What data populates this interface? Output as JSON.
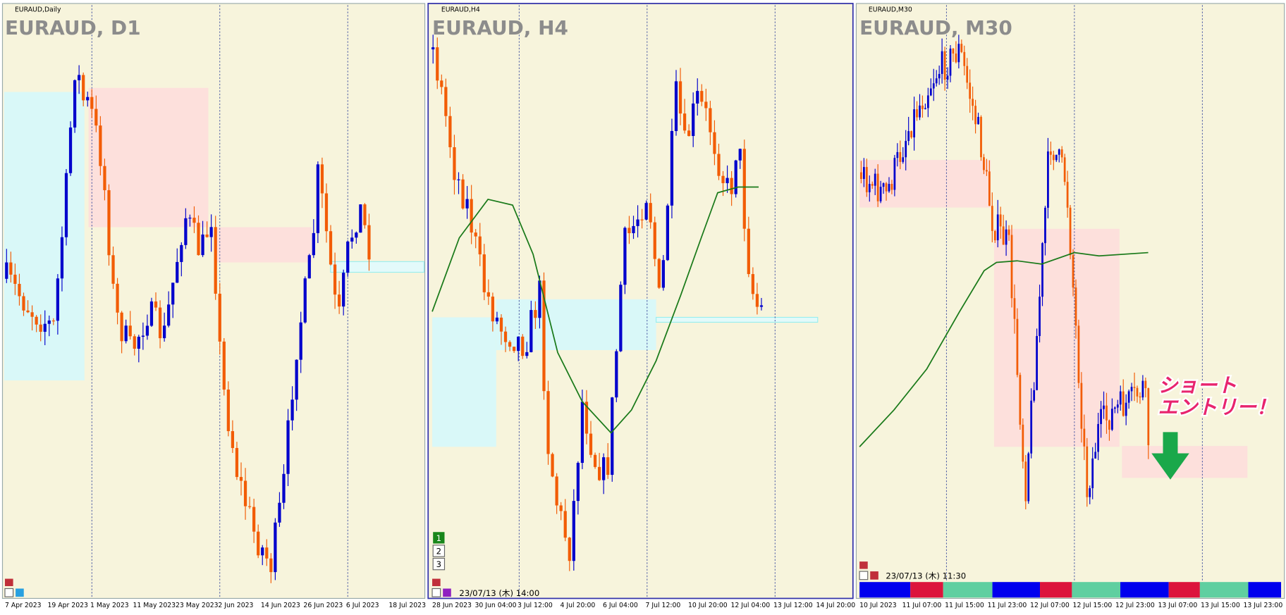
{
  "panels": [
    {
      "label": "EURAUD,Daily",
      "title": "EURAUD, D1",
      "x_labels": [
        "7 Apr 2023",
        "19 Apr 2023",
        "1 May 2023",
        "11 May 2023",
        "23 May 2023",
        "2 Jun 2023",
        "14 Jun 2023",
        "26 Jun 2023",
        "6 Jul 2023",
        "18 Jul 2023"
      ]
    },
    {
      "label": "EURAUD,H4",
      "title": "EURAUD, H4",
      "x_labels": [
        "28 Jun 2023",
        "30 Jun 04:00",
        "3 Jul 12:00",
        "4 Jul 20:00",
        "6 Jul 04:00",
        "7 Jul 12:00",
        "10 Jul 20:00",
        "12 Jul 04:00",
        "13 Jul 12:00",
        "14 Jul 20:00"
      ],
      "timestamp": "23/07/13 (木) 14:00",
      "buttons": [
        "1",
        "2",
        "3"
      ]
    },
    {
      "label": "EURAUD,M30",
      "title": "EURAUD, M30",
      "x_labels": [
        "10 Jul 2023",
        "11 Jul 07:00",
        "11 Jul 15:00",
        "11 Jul 23:00",
        "12 Jul 07:00",
        "12 Jul 15:00",
        "12 Jul 23:00",
        "13 Jul 07:00",
        "13 Jul 15:00",
        "13 Jul 23:00"
      ],
      "timestamp": "23/07/13 (木) 11:30",
      "annotation": [
        "ショート",
        "エントリー！"
      ]
    }
  ]
}
